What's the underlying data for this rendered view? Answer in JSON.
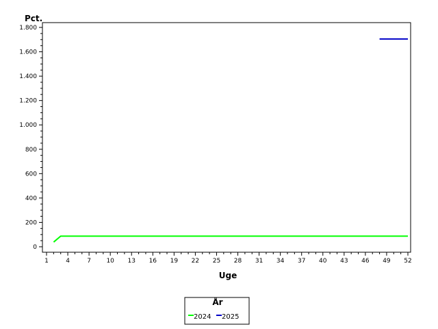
{
  "chart_data": {
    "type": "line",
    "title": "",
    "ylabel": "Pct.",
    "xlabel": "Uge",
    "xlim": [
      1,
      52
    ],
    "ylim": [
      0,
      1800
    ],
    "x_ticks": [
      1,
      4,
      7,
      10,
      13,
      16,
      19,
      22,
      25,
      28,
      31,
      34,
      37,
      40,
      43,
      46,
      49,
      52
    ],
    "y_ticks": [
      {
        "value": 0,
        "label": "0"
      },
      {
        "value": 200,
        "label": "200"
      },
      {
        "value": 400,
        "label": "400"
      },
      {
        "value": 600,
        "label": "600"
      },
      {
        "value": 800,
        "label": "800"
      },
      {
        "value": 1000,
        "label": "1.000"
      },
      {
        "value": 1200,
        "label": "1.200"
      },
      {
        "value": 1400,
        "label": "1.400"
      },
      {
        "value": 1600,
        "label": "1.600"
      },
      {
        "value": 1800,
        "label": "1.800"
      }
    ],
    "grid": false,
    "legend": {
      "title": "År",
      "position": "bottom-center"
    },
    "series": [
      {
        "name": "2024",
        "color": "#00ff00",
        "points": [
          [
            2,
            38
          ],
          [
            3,
            87
          ],
          [
            52,
            87
          ]
        ]
      },
      {
        "name": "2025",
        "color": "#0000c8",
        "points": [
          [
            48,
            1705
          ],
          [
            52,
            1705
          ]
        ]
      }
    ]
  }
}
